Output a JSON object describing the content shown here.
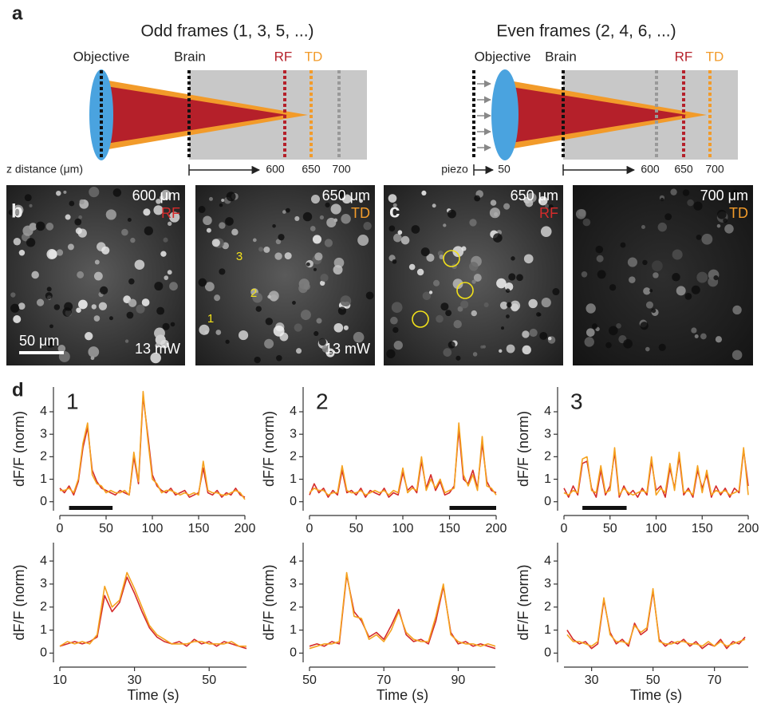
{
  "panel_labels": [
    "a",
    "b",
    "c",
    "d"
  ],
  "panel_a": {
    "odd": {
      "title": "Odd frames (1, 3, 5, ...)",
      "objective": "Objective",
      "brain": "Brain",
      "rf": "RF",
      "td": "TD",
      "axis_label": "z distance (μm)",
      "depths": [
        "600",
        "650",
        "700"
      ]
    },
    "even": {
      "title": "Even frames (2, 4, 6, ...)",
      "objective": "Objective",
      "brain": "Brain",
      "rf": "RF",
      "td": "TD",
      "piezo": "piezo",
      "piezo_depth": "50",
      "depths": [
        "600",
        "650",
        "700"
      ]
    }
  },
  "images": [
    {
      "depth": "600 μm",
      "channel": "RF",
      "power": "13 mW",
      "scale_bar": "50 μm"
    },
    {
      "depth": "650 μm",
      "channel": "TD",
      "power": "13 mW",
      "rois": [
        "1",
        "2",
        "3"
      ]
    },
    {
      "depth": "650 μm",
      "channel": "RF"
    },
    {
      "depth": "700 μm",
      "channel": "TD"
    }
  ],
  "chart_data": [
    {
      "type": "line",
      "title": "1",
      "y_label": "dF/F (norm)",
      "x": [
        0,
        5,
        10,
        15,
        20,
        25,
        30,
        35,
        40,
        45,
        50,
        55,
        60,
        65,
        70,
        75,
        80,
        85,
        90,
        95,
        100,
        105,
        110,
        115,
        120,
        125,
        130,
        135,
        140,
        145,
        150,
        155,
        160,
        165,
        170,
        175,
        180,
        185,
        190,
        195,
        200
      ],
      "xlim": [
        0,
        200
      ],
      "xticks": [
        0,
        50,
        100,
        150,
        200
      ],
      "ylim": [
        -0.4,
        5.1
      ],
      "yticks": [
        0,
        1,
        2,
        3,
        4
      ],
      "stimulus": [
        10,
        57
      ],
      "series": [
        {
          "color": "#d42b2b",
          "values": [
            0.6,
            0.4,
            0.7,
            0.3,
            0.9,
            2.4,
            3.3,
            1.4,
            0.9,
            0.6,
            0.5,
            0.4,
            0.3,
            0.5,
            0.4,
            0.3,
            2.0,
            0.8,
            4.7,
            3.0,
            1.2,
            0.7,
            0.5,
            0.4,
            0.6,
            0.3,
            0.4,
            0.5,
            0.2,
            0.3,
            0.4,
            1.5,
            0.4,
            0.3,
            0.5,
            0.2,
            0.4,
            0.3,
            0.6,
            0.3,
            0.2
          ]
        },
        {
          "color": "#f5a21f",
          "values": [
            0.5,
            0.5,
            0.6,
            0.4,
            1.0,
            2.6,
            3.5,
            1.2,
            0.8,
            0.7,
            0.4,
            0.5,
            0.4,
            0.4,
            0.5,
            0.3,
            2.2,
            0.9,
            4.9,
            2.8,
            1.0,
            0.8,
            0.4,
            0.5,
            0.5,
            0.4,
            0.3,
            0.4,
            0.3,
            0.4,
            0.3,
            1.8,
            0.5,
            0.4,
            0.4,
            0.3,
            0.3,
            0.4,
            0.5,
            0.4,
            0.1
          ]
        }
      ]
    },
    {
      "type": "line",
      "title": "2",
      "y_label": "dF/F (norm)",
      "x": [
        0,
        5,
        10,
        15,
        20,
        25,
        30,
        35,
        40,
        45,
        50,
        55,
        60,
        65,
        70,
        75,
        80,
        85,
        90,
        95,
        100,
        105,
        110,
        115,
        120,
        125,
        130,
        135,
        140,
        145,
        150,
        155,
        160,
        165,
        170,
        175,
        180,
        185,
        190,
        195,
        200
      ],
      "xlim": [
        0,
        200
      ],
      "xticks": [
        0,
        50,
        100,
        150,
        200
      ],
      "ylim": [
        -0.4,
        5.1
      ],
      "yticks": [
        0,
        1,
        2,
        3,
        4
      ],
      "stimulus": [
        150,
        200
      ],
      "series": [
        {
          "color": "#d42b2b",
          "values": [
            0.3,
            0.8,
            0.4,
            0.6,
            0.2,
            0.5,
            0.3,
            1.4,
            0.4,
            0.5,
            0.3,
            0.6,
            0.2,
            0.5,
            0.4,
            0.3,
            0.6,
            0.2,
            0.4,
            0.3,
            1.3,
            0.5,
            0.7,
            0.4,
            1.8,
            0.6,
            1.2,
            0.5,
            0.9,
            0.3,
            0.4,
            0.7,
            3.2,
            1.0,
            0.8,
            1.4,
            0.6,
            2.6,
            0.9,
            0.5,
            0.4
          ]
        },
        {
          "color": "#f5a21f",
          "values": [
            0.4,
            0.6,
            0.5,
            0.5,
            0.3,
            0.4,
            0.4,
            1.6,
            0.5,
            0.4,
            0.4,
            0.5,
            0.3,
            0.4,
            0.5,
            0.4,
            0.5,
            0.3,
            0.5,
            0.4,
            1.5,
            0.4,
            0.6,
            0.5,
            2.0,
            0.5,
            1.0,
            0.6,
            1.0,
            0.4,
            0.5,
            0.6,
            3.5,
            1.2,
            0.7,
            1.2,
            0.5,
            2.9,
            0.7,
            0.6,
            0.3
          ]
        }
      ]
    },
    {
      "type": "line",
      "title": "3",
      "y_label": "dF/F (norm)",
      "x": [
        0,
        5,
        10,
        15,
        20,
        25,
        30,
        35,
        40,
        45,
        50,
        55,
        60,
        65,
        70,
        75,
        80,
        85,
        90,
        95,
        100,
        105,
        110,
        115,
        120,
        125,
        130,
        135,
        140,
        145,
        150,
        155,
        160,
        165,
        170,
        175,
        180,
        185,
        190,
        195,
        200
      ],
      "xlim": [
        0,
        200
      ],
      "xticks": [
        0,
        50,
        100,
        150,
        200
      ],
      "ylim": [
        -0.4,
        5.1
      ],
      "yticks": [
        0,
        1,
        2,
        3,
        4
      ],
      "stimulus": [
        20,
        68
      ],
      "series": [
        {
          "color": "#d42b2b",
          "values": [
            0.6,
            0.2,
            0.7,
            0.3,
            1.7,
            1.8,
            0.6,
            0.2,
            1.4,
            0.3,
            0.7,
            2.2,
            0.2,
            0.7,
            0.3,
            0.5,
            0.2,
            0.6,
            0.3,
            1.8,
            0.5,
            0.7,
            0.2,
            1.5,
            0.6,
            2.0,
            0.3,
            0.6,
            0.2,
            1.4,
            0.6,
            1.2,
            0.2,
            0.7,
            0.3,
            0.6,
            0.2,
            0.6,
            0.4,
            2.3,
            0.7
          ]
        },
        {
          "color": "#f5a21f",
          "values": [
            0.4,
            0.3,
            0.5,
            0.4,
            1.9,
            2.0,
            0.5,
            0.4,
            1.6,
            0.4,
            0.5,
            2.4,
            0.3,
            0.6,
            0.4,
            0.3,
            0.4,
            0.5,
            0.4,
            2.0,
            0.3,
            0.6,
            0.4,
            1.7,
            0.5,
            2.2,
            0.4,
            0.5,
            0.3,
            1.6,
            0.4,
            1.4,
            0.3,
            0.5,
            0.4,
            0.5,
            0.3,
            0.4,
            0.5,
            2.4,
            0.3
          ]
        }
      ]
    },
    {
      "type": "line",
      "y_label": "dF/F (norm)",
      "x_label": "Time (s)",
      "x": [
        10,
        12,
        14,
        16,
        18,
        20,
        22,
        24,
        26,
        28,
        30,
        32,
        34,
        36,
        38,
        40,
        42,
        44,
        46,
        48,
        50,
        52,
        54,
        56,
        58,
        60
      ],
      "xlim": [
        10,
        60
      ],
      "xticks": [
        10,
        30,
        50
      ],
      "ylim": [
        -0.4,
        4.8
      ],
      "yticks": [
        0,
        1,
        2,
        3,
        4
      ],
      "series": [
        {
          "color": "#d42b2b",
          "values": [
            0.3,
            0.4,
            0.5,
            0.4,
            0.5,
            0.7,
            2.5,
            1.8,
            2.2,
            3.3,
            2.6,
            1.8,
            1.1,
            0.7,
            0.5,
            0.4,
            0.5,
            0.3,
            0.6,
            0.4,
            0.5,
            0.3,
            0.5,
            0.4,
            0.3,
            0.2
          ]
        },
        {
          "color": "#f5a21f",
          "values": [
            0.3,
            0.5,
            0.4,
            0.5,
            0.4,
            0.8,
            2.9,
            2.0,
            2.3,
            3.5,
            2.8,
            2.0,
            1.2,
            0.8,
            0.6,
            0.4,
            0.4,
            0.4,
            0.5,
            0.5,
            0.4,
            0.4,
            0.4,
            0.5,
            0.3,
            0.3
          ]
        }
      ]
    },
    {
      "type": "line",
      "y_label": "dF/F (norm)",
      "x_label": "Time (s)",
      "x": [
        50,
        52,
        54,
        56,
        58,
        60,
        62,
        64,
        66,
        68,
        70,
        72,
        74,
        76,
        78,
        80,
        82,
        84,
        86,
        88,
        90,
        92,
        94,
        96,
        98,
        100
      ],
      "xlim": [
        50,
        100
      ],
      "xticks": [
        50,
        70,
        90
      ],
      "ylim": [
        -0.4,
        4.8
      ],
      "yticks": [
        0,
        1,
        2,
        3,
        4
      ],
      "series": [
        {
          "color": "#d42b2b",
          "values": [
            0.3,
            0.4,
            0.3,
            0.5,
            0.4,
            3.4,
            1.8,
            1.4,
            0.7,
            0.9,
            0.6,
            1.2,
            1.9,
            0.8,
            0.5,
            0.6,
            0.4,
            1.4,
            2.9,
            0.9,
            0.4,
            0.5,
            0.3,
            0.4,
            0.3,
            0.2
          ]
        },
        {
          "color": "#f5a21f",
          "values": [
            0.2,
            0.3,
            0.4,
            0.4,
            0.5,
            3.5,
            1.6,
            1.5,
            0.6,
            0.8,
            0.5,
            1.0,
            1.8,
            0.9,
            0.6,
            0.5,
            0.5,
            1.6,
            3.0,
            0.8,
            0.5,
            0.4,
            0.4,
            0.3,
            0.4,
            0.3
          ]
        }
      ]
    },
    {
      "type": "line",
      "y_label": "dF/F (norm)",
      "x_label": "Time (s)",
      "x": [
        22,
        24,
        26,
        28,
        30,
        32,
        34,
        36,
        38,
        40,
        42,
        44,
        46,
        48,
        50,
        52,
        54,
        56,
        58,
        60,
        62,
        64,
        66,
        68,
        70,
        72,
        74,
        76,
        78,
        80
      ],
      "xlim": [
        21,
        81
      ],
      "xticks": [
        30,
        50,
        70
      ],
      "ylim": [
        -0.4,
        4.8
      ],
      "yticks": [
        0,
        1,
        2,
        3,
        4
      ],
      "series": [
        {
          "color": "#d42b2b",
          "values": [
            1.0,
            0.6,
            0.4,
            0.5,
            0.2,
            0.4,
            2.3,
            0.9,
            0.4,
            0.6,
            0.3,
            1.3,
            0.8,
            1.0,
            2.7,
            0.6,
            0.3,
            0.5,
            0.4,
            0.6,
            0.3,
            0.5,
            0.2,
            0.4,
            0.3,
            0.6,
            0.2,
            0.5,
            0.4,
            0.7
          ]
        },
        {
          "color": "#f5a21f",
          "values": [
            0.8,
            0.5,
            0.5,
            0.4,
            0.3,
            0.5,
            2.4,
            0.8,
            0.5,
            0.5,
            0.4,
            1.2,
            0.9,
            1.1,
            2.8,
            0.5,
            0.4,
            0.4,
            0.5,
            0.5,
            0.4,
            0.4,
            0.3,
            0.5,
            0.3,
            0.5,
            0.3,
            0.4,
            0.5,
            0.6
          ]
        }
      ]
    }
  ]
}
